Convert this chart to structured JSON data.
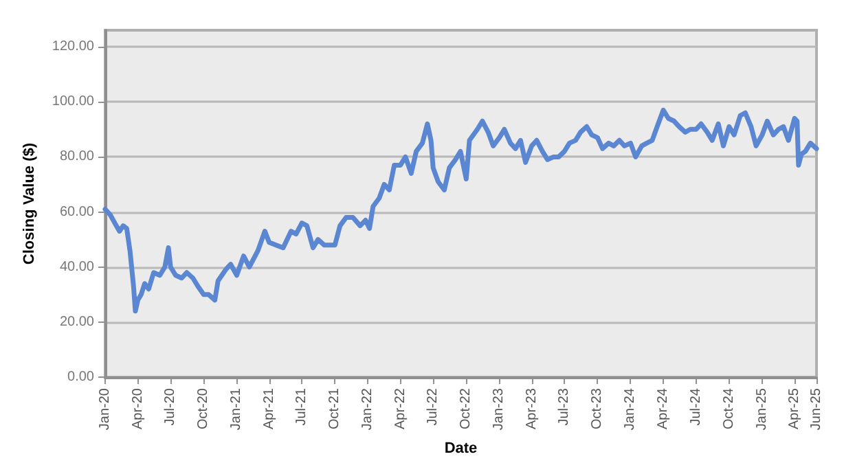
{
  "chart_data": {
    "type": "line",
    "xlabel": "Date",
    "ylabel": "Closing Value ($)",
    "grid": "y",
    "marker": "none",
    "line_style": "solid",
    "xlim": [
      "2020-01-01",
      "2025-06-01"
    ],
    "xticks": [
      {
        "value": "2020-01-01",
        "label": "Jan-20"
      },
      {
        "value": "2020-04-01",
        "label": "Apr-20"
      },
      {
        "value": "2020-07-01",
        "label": "Jul-20"
      },
      {
        "value": "2020-10-01",
        "label": "Oct-20"
      },
      {
        "value": "2021-01-01",
        "label": "Jan-21"
      },
      {
        "value": "2021-04-01",
        "label": "Apr-21"
      },
      {
        "value": "2021-07-01",
        "label": "Jul-21"
      },
      {
        "value": "2021-10-01",
        "label": "Oct-21"
      },
      {
        "value": "2022-01-01",
        "label": "Jan-22"
      },
      {
        "value": "2022-04-01",
        "label": "Apr-22"
      },
      {
        "value": "2022-07-01",
        "label": "Jul-22"
      },
      {
        "value": "2022-10-01",
        "label": "Oct-22"
      },
      {
        "value": "2023-01-01",
        "label": "Jan-23"
      },
      {
        "value": "2023-04-01",
        "label": "Apr-23"
      },
      {
        "value": "2023-07-01",
        "label": "Jul-23"
      },
      {
        "value": "2023-10-01",
        "label": "Oct-23"
      },
      {
        "value": "2024-01-01",
        "label": "Jan-24"
      },
      {
        "value": "2024-04-01",
        "label": "Apr-24"
      },
      {
        "value": "2024-07-01",
        "label": "Jul-24"
      },
      {
        "value": "2024-10-01",
        "label": "Oct-24"
      },
      {
        "value": "2025-01-01",
        "label": "Jan-25"
      },
      {
        "value": "2025-04-01",
        "label": "Apr-25"
      },
      {
        "value": "2025-06-01",
        "label": "Jun-25"
      }
    ],
    "ylim": [
      0,
      126
    ],
    "yticks": [
      {
        "value": 0,
        "label": "0.00"
      },
      {
        "value": 20,
        "label": "20.00"
      },
      {
        "value": 40,
        "label": "40.00"
      },
      {
        "value": 60,
        "label": "60.00"
      },
      {
        "value": 80,
        "label": "80.00"
      },
      {
        "value": 100,
        "label": "100.00"
      },
      {
        "value": 120,
        "label": "120.00"
      }
    ],
    "x": [
      "2020-01-01",
      "2020-01-15",
      "2020-02-01",
      "2020-02-10",
      "2020-02-20",
      "2020-03-01",
      "2020-03-10",
      "2020-03-20",
      "2020-03-25",
      "2020-04-01",
      "2020-04-10",
      "2020-04-20",
      "2020-05-01",
      "2020-05-15",
      "2020-06-01",
      "2020-06-15",
      "2020-06-25",
      "2020-07-01",
      "2020-07-15",
      "2020-08-01",
      "2020-08-15",
      "2020-09-01",
      "2020-09-15",
      "2020-10-01",
      "2020-10-15",
      "2020-11-01",
      "2020-11-10",
      "2020-12-01",
      "2020-12-15",
      "2021-01-01",
      "2021-01-20",
      "2021-02-05",
      "2021-03-01",
      "2021-03-20",
      "2021-04-01",
      "2021-04-20",
      "2021-05-10",
      "2021-06-01",
      "2021-06-15",
      "2021-07-01",
      "2021-07-15",
      "2021-08-01",
      "2021-08-15",
      "2021-09-01",
      "2021-09-15",
      "2021-10-01",
      "2021-10-15",
      "2021-11-01",
      "2021-11-20",
      "2021-12-10",
      "2021-12-25",
      "2022-01-05",
      "2022-01-15",
      "2022-02-01",
      "2022-02-15",
      "2022-03-01",
      "2022-03-15",
      "2022-04-01",
      "2022-04-15",
      "2022-05-01",
      "2022-05-15",
      "2022-06-01",
      "2022-06-15",
      "2022-06-25",
      "2022-07-01",
      "2022-07-15",
      "2022-08-01",
      "2022-08-15",
      "2022-09-01",
      "2022-09-15",
      "2022-10-01",
      "2022-10-10",
      "2022-11-01",
      "2022-11-15",
      "2022-12-01",
      "2022-12-15",
      "2023-01-01",
      "2023-01-15",
      "2023-02-01",
      "2023-02-15",
      "2023-03-01",
      "2023-03-15",
      "2023-04-01",
      "2023-04-15",
      "2023-05-01",
      "2023-05-15",
      "2023-06-01",
      "2023-06-15",
      "2023-07-01",
      "2023-07-15",
      "2023-08-01",
      "2023-08-15",
      "2023-09-01",
      "2023-09-15",
      "2023-10-01",
      "2023-10-15",
      "2023-11-01",
      "2023-11-15",
      "2023-12-01",
      "2023-12-15",
      "2024-01-01",
      "2024-01-15",
      "2024-02-01",
      "2024-02-15",
      "2024-03-01",
      "2024-03-15",
      "2024-04-01",
      "2024-04-15",
      "2024-05-01",
      "2024-05-15",
      "2024-06-01",
      "2024-06-15",
      "2024-07-01",
      "2024-07-15",
      "2024-08-01",
      "2024-08-15",
      "2024-09-01",
      "2024-09-15",
      "2024-10-01",
      "2024-10-15",
      "2024-11-01",
      "2024-11-15",
      "2024-12-01",
      "2024-12-15",
      "2025-01-01",
      "2025-01-15",
      "2025-02-01",
      "2025-02-15",
      "2025-03-01",
      "2025-03-15",
      "2025-04-01",
      "2025-04-08",
      "2025-04-12",
      "2025-04-20",
      "2025-05-01",
      "2025-05-15",
      "2025-06-01"
    ],
    "series": [
      {
        "color": "#5b87d2",
        "values": [
          61,
          59,
          55,
          53,
          55,
          54,
          46,
          33,
          24,
          28,
          30,
          34,
          32,
          38,
          37,
          40,
          47,
          40,
          37,
          36,
          38,
          36,
          33,
          30,
          30,
          28,
          35,
          39,
          41,
          37,
          44,
          40,
          46,
          53,
          49,
          48,
          47,
          53,
          52,
          56,
          55,
          47,
          50,
          48,
          48,
          48,
          55,
          58,
          58,
          55,
          57,
          54,
          62,
          65,
          70,
          68,
          77,
          77,
          80,
          74,
          82,
          85,
          92,
          86,
          76,
          71,
          68,
          76,
          79,
          82,
          72,
          86,
          90,
          93,
          89,
          84,
          87,
          90,
          85,
          83,
          86,
          78,
          84,
          86,
          82,
          79,
          80,
          80,
          82,
          85,
          86,
          89,
          91,
          88,
          87,
          83,
          85,
          84,
          86,
          84,
          85,
          80,
          84,
          85,
          86,
          91,
          97,
          94,
          93,
          91,
          89,
          90,
          90,
          92,
          89,
          86,
          92,
          84,
          91,
          88,
          95,
          96,
          91,
          84,
          88,
          93,
          88,
          90,
          91,
          86,
          94,
          93,
          77,
          81,
          82,
          85,
          83
        ]
      }
    ]
  }
}
